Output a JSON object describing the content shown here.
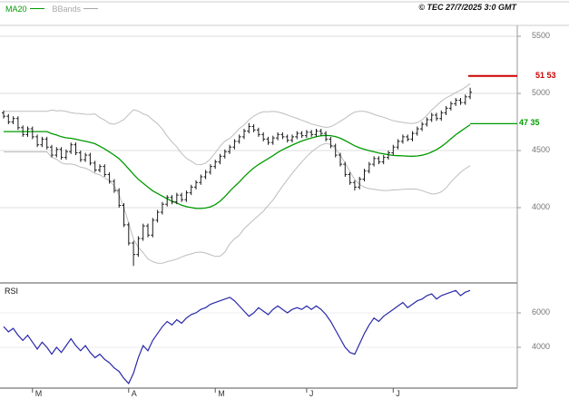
{
  "header": {
    "legend_ma20": "MA20",
    "legend_bbands": "BBands",
    "copyright": "© TEC 27/7/2025 3:0 GMT"
  },
  "colors": {
    "ma20": "#009a00",
    "bbands": "#bdbdbd",
    "candles": "#1a1a1a",
    "rsi_line": "#2a2aaa",
    "resistance": "#cc0000",
    "grid": "#dddddd",
    "frame_light": "#cccccc",
    "frame_dark": "#555555",
    "axis_line": "#999999",
    "axis_text": "#777777"
  },
  "chart_data": {
    "type": "candlestick",
    "title": "",
    "panels": [
      {
        "name": "price",
        "yticks": [
          {
            "value": 55,
            "label": "5500"
          },
          {
            "value": 50,
            "label": "5000"
          },
          {
            "value": 45,
            "label": "4500"
          },
          {
            "value": 40,
            "label": "4000"
          }
        ],
        "overlays": [
          "MA20",
          "Bollinger Bands (20,2)"
        ],
        "levels": [
          {
            "value": 51.53,
            "label": "51 53",
            "color": "#cc0000"
          },
          {
            "value": 47.35,
            "label": "47 35",
            "color": "#009a00"
          }
        ],
        "candles_ohlc": [
          [
            48.3,
            48.5,
            47.8,
            48.0
          ],
          [
            48.0,
            48.2,
            47.3,
            47.5
          ],
          [
            47.5,
            48.0,
            47.3,
            47.8
          ],
          [
            47.8,
            48.0,
            46.8,
            47.0
          ],
          [
            47.0,
            47.2,
            46.2,
            46.4
          ],
          [
            46.4,
            47.1,
            46.2,
            46.9
          ],
          [
            46.9,
            47.1,
            46.0,
            46.2
          ],
          [
            46.2,
            46.4,
            45.3,
            45.5
          ],
          [
            45.5,
            46.2,
            45.3,
            46.0
          ],
          [
            46.0,
            46.2,
            45.1,
            45.3
          ],
          [
            45.3,
            45.5,
            44.4,
            44.6
          ],
          [
            44.6,
            45.3,
            44.4,
            45.1
          ],
          [
            45.1,
            45.3,
            44.2,
            44.4
          ],
          [
            44.4,
            45.1,
            44.2,
            44.9
          ],
          [
            44.9,
            45.7,
            44.7,
            45.5
          ],
          [
            45.5,
            45.7,
            44.6,
            44.8
          ],
          [
            44.8,
            45.0,
            44.0,
            44.2
          ],
          [
            44.2,
            44.8,
            44.0,
            44.6
          ],
          [
            44.6,
            44.8,
            43.7,
            43.9
          ],
          [
            43.9,
            44.1,
            43.1,
            43.3
          ],
          [
            43.3,
            43.8,
            43.1,
            43.6
          ],
          [
            43.6,
            43.8,
            42.7,
            42.9
          ],
          [
            42.9,
            43.1,
            42.1,
            42.3
          ],
          [
            42.3,
            42.5,
            41.3,
            41.5
          ],
          [
            41.5,
            41.7,
            40.0,
            40.2
          ],
          [
            40.2,
            40.4,
            38.3,
            38.5
          ],
          [
            38.5,
            38.7,
            36.7,
            36.9
          ],
          [
            36.9,
            37.1,
            34.9,
            35.9
          ],
          [
            35.9,
            37.5,
            35.7,
            37.3
          ],
          [
            37.3,
            38.6,
            37.1,
            38.4
          ],
          [
            38.4,
            38.6,
            37.4,
            37.6
          ],
          [
            37.6,
            39.1,
            37.4,
            38.9
          ],
          [
            38.9,
            39.8,
            38.7,
            39.6
          ],
          [
            39.6,
            40.5,
            39.4,
            40.3
          ],
          [
            40.3,
            41.1,
            40.1,
            40.9
          ],
          [
            40.9,
            41.1,
            40.3,
            40.5
          ],
          [
            40.5,
            41.3,
            40.3,
            41.1
          ],
          [
            41.1,
            41.3,
            40.5,
            40.7
          ],
          [
            40.7,
            41.5,
            40.5,
            41.3
          ],
          [
            41.3,
            42.0,
            41.1,
            41.8
          ],
          [
            41.8,
            42.4,
            41.6,
            42.2
          ],
          [
            42.2,
            42.9,
            42.0,
            42.7
          ],
          [
            42.7,
            43.3,
            42.5,
            43.1
          ],
          [
            43.1,
            43.8,
            42.9,
            43.6
          ],
          [
            43.6,
            44.2,
            43.4,
            44.0
          ],
          [
            44.0,
            44.7,
            43.8,
            44.5
          ],
          [
            44.5,
            45.1,
            44.3,
            44.9
          ],
          [
            44.9,
            45.5,
            44.7,
            45.3
          ],
          [
            45.3,
            46.0,
            45.1,
            45.8
          ],
          [
            45.8,
            46.4,
            45.6,
            46.2
          ],
          [
            46.2,
            46.9,
            46.0,
            46.7
          ],
          [
            46.7,
            47.4,
            46.5,
            47.1
          ],
          [
            47.1,
            47.3,
            46.6,
            46.8
          ],
          [
            46.8,
            47.0,
            46.2,
            46.4
          ],
          [
            46.4,
            46.6,
            45.8,
            46.0
          ],
          [
            46.0,
            46.2,
            45.5,
            45.7
          ],
          [
            45.7,
            46.3,
            45.5,
            46.1
          ],
          [
            46.1,
            46.6,
            45.9,
            46.4
          ],
          [
            46.4,
            46.6,
            46.0,
            46.2
          ],
          [
            46.2,
            46.4,
            45.7,
            45.9
          ],
          [
            45.9,
            46.4,
            45.7,
            46.2
          ],
          [
            46.2,
            46.7,
            46.0,
            46.5
          ],
          [
            46.5,
            46.7,
            46.1,
            46.3
          ],
          [
            46.3,
            46.8,
            46.1,
            46.6
          ],
          [
            46.6,
            46.8,
            46.2,
            46.4
          ],
          [
            46.4,
            46.9,
            46.2,
            46.7
          ],
          [
            46.7,
            46.9,
            46.3,
            46.5
          ],
          [
            46.5,
            46.7,
            45.8,
            46.0
          ],
          [
            46.0,
            46.2,
            45.2,
            45.4
          ],
          [
            45.4,
            45.6,
            44.4,
            44.6
          ],
          [
            44.6,
            44.8,
            43.6,
            43.8
          ],
          [
            43.8,
            44.0,
            42.7,
            42.9
          ],
          [
            42.9,
            43.1,
            42.0,
            42.2
          ],
          [
            42.2,
            42.4,
            41.5,
            41.8
          ],
          [
            41.8,
            42.7,
            41.6,
            42.5
          ],
          [
            42.5,
            43.4,
            42.3,
            43.2
          ],
          [
            43.2,
            44.0,
            43.0,
            43.8
          ],
          [
            43.8,
            44.5,
            43.6,
            44.3
          ],
          [
            44.3,
            44.5,
            43.8,
            44.0
          ],
          [
            44.0,
            44.6,
            43.8,
            44.4
          ],
          [
            44.4,
            45.0,
            44.2,
            44.8
          ],
          [
            44.8,
            45.5,
            44.6,
            45.3
          ],
          [
            45.3,
            46.0,
            45.1,
            45.8
          ],
          [
            45.8,
            46.4,
            45.6,
            46.2
          ],
          [
            46.2,
            46.4,
            45.8,
            46.0
          ],
          [
            46.0,
            46.7,
            45.8,
            46.5
          ],
          [
            46.5,
            47.1,
            46.3,
            46.9
          ],
          [
            46.9,
            47.5,
            46.7,
            47.3
          ],
          [
            47.3,
            47.9,
            47.1,
            47.7
          ],
          [
            47.7,
            48.3,
            47.5,
            48.1
          ],
          [
            48.1,
            48.3,
            47.6,
            47.8
          ],
          [
            47.8,
            48.5,
            47.6,
            48.3
          ],
          [
            48.3,
            48.9,
            48.1,
            48.7
          ],
          [
            48.7,
            49.3,
            48.5,
            49.1
          ],
          [
            49.1,
            49.6,
            48.9,
            49.4
          ],
          [
            49.4,
            49.6,
            49.0,
            49.2
          ],
          [
            49.2,
            49.9,
            49.0,
            49.7
          ],
          [
            49.7,
            50.5,
            49.5,
            50.1
          ]
        ]
      },
      {
        "name": "rsi",
        "label": "RSI",
        "yticks": [
          {
            "value": 60,
            "label": "6000"
          },
          {
            "value": 40,
            "label": "4000"
          }
        ],
        "values": [
          52,
          49,
          51,
          47,
          44,
          47,
          43,
          39,
          43,
          40,
          36,
          40,
          37,
          41,
          45,
          41,
          38,
          41,
          37,
          34,
          36,
          33,
          31,
          28,
          26,
          22,
          19,
          25,
          34,
          41,
          38,
          44,
          48,
          52,
          55,
          53,
          56,
          54,
          57,
          59,
          60,
          62,
          63,
          65,
          66,
          67,
          68,
          69,
          67,
          64,
          61,
          58,
          60,
          63,
          61,
          59,
          62,
          64,
          62,
          60,
          62,
          63,
          62,
          64,
          62,
          64,
          62,
          59,
          55,
          50,
          45,
          40,
          37,
          36,
          42,
          48,
          53,
          57,
          55,
          58,
          60,
          62,
          64,
          66,
          63,
          65,
          67,
          68,
          70,
          71,
          68,
          70,
          71,
          72,
          73,
          70,
          72,
          73
        ]
      }
    ],
    "x_months": [
      {
        "index": 6,
        "label": "M"
      },
      {
        "index": 26,
        "label": "A"
      },
      {
        "index": 44,
        "label": "M"
      },
      {
        "index": 63,
        "label": "J"
      },
      {
        "index": 81,
        "label": "J"
      }
    ]
  }
}
